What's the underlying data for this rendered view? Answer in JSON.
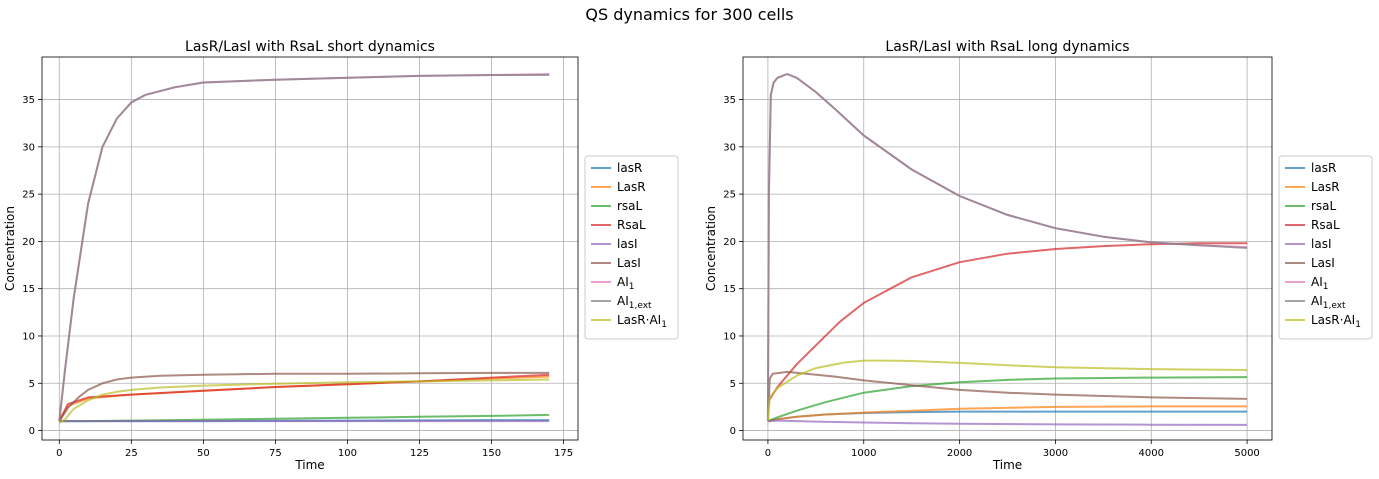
{
  "figure": {
    "suptitle": "QS dynamics for 300 cells"
  },
  "legend_labels": [
    {
      "pre": "lasR",
      "sub": "",
      "post": ""
    },
    {
      "pre": "LasR",
      "sub": "",
      "post": ""
    },
    {
      "pre": "rsaL",
      "sub": "",
      "post": ""
    },
    {
      "pre": "RsaL",
      "sub": "",
      "post": ""
    },
    {
      "pre": "lasI",
      "sub": "",
      "post": ""
    },
    {
      "pre": "LasI",
      "sub": "",
      "post": ""
    },
    {
      "pre": "AI",
      "sub": "1",
      "post": ""
    },
    {
      "pre": "AI",
      "sub": "1,ext",
      "post": ""
    },
    {
      "pre": "LasR·AI",
      "sub": "1",
      "post": ""
    }
  ],
  "colors": [
    "#1f77b4",
    "#ff7f0e",
    "#2ca02c",
    "#d62728",
    "#9467bd",
    "#8c564b",
    "#e377c2",
    "#7f7f7f",
    "#bcbd22"
  ],
  "chart_data": [
    {
      "type": "line",
      "title": "LasR/LasI with RsaL short dynamics",
      "xlabel": "Time",
      "ylabel": "Concentration",
      "xlim": [
        -6,
        180
      ],
      "ylim": [
        -1,
        39.5
      ],
      "xticks": [
        0,
        25,
        50,
        75,
        100,
        125,
        150,
        175
      ],
      "yticks": [
        0,
        5,
        10,
        15,
        20,
        25,
        30,
        35
      ],
      "grid": true,
      "legend_position": "right, outside",
      "series": [
        {
          "name": "lasR",
          "x": [
            0,
            5,
            10,
            25,
            50,
            100,
            150,
            170
          ],
          "y": [
            1.0,
            1.0,
            1.0,
            1.0,
            1.0,
            1.05,
            1.1,
            1.1
          ]
        },
        {
          "name": "LasR",
          "x": [
            0,
            3,
            10,
            25,
            50,
            75,
            100,
            125,
            150,
            170
          ],
          "y": [
            1.0,
            2.6,
            3.4,
            3.8,
            4.2,
            4.6,
            4.9,
            5.2,
            5.5,
            5.7
          ]
        },
        {
          "name": "rsaL",
          "x": [
            0,
            5,
            10,
            25,
            50,
            75,
            100,
            125,
            150,
            170
          ],
          "y": [
            1.0,
            1.0,
            1.0,
            1.05,
            1.15,
            1.25,
            1.35,
            1.45,
            1.55,
            1.65
          ]
        },
        {
          "name": "RsaL",
          "x": [
            0,
            3,
            10,
            25,
            50,
            75,
            100,
            125,
            150,
            170
          ],
          "y": [
            1.0,
            2.8,
            3.5,
            3.8,
            4.2,
            4.6,
            4.9,
            5.2,
            5.6,
            5.9
          ]
        },
        {
          "name": "lasI",
          "x": [
            0,
            5,
            10,
            25,
            50,
            100,
            150,
            170
          ],
          "y": [
            1.0,
            1.0,
            1.0,
            1.0,
            1.0,
            1.0,
            1.0,
            1.0
          ]
        },
        {
          "name": "LasI",
          "x": [
            0,
            3,
            7,
            10,
            15,
            20,
            25,
            35,
            50,
            75,
            100,
            125,
            150,
            170
          ],
          "y": [
            1.0,
            2.4,
            3.6,
            4.3,
            5.0,
            5.4,
            5.6,
            5.8,
            5.9,
            6.0,
            6.0,
            6.05,
            6.1,
            6.1
          ]
        },
        {
          "name": "AI_1",
          "x": [
            0,
            2,
            5,
            10,
            15,
            20,
            25,
            30,
            40,
            50,
            75,
            100,
            125,
            150,
            170
          ],
          "y": [
            1.0,
            6.5,
            14.0,
            24.0,
            30.0,
            33.0,
            34.7,
            35.5,
            36.3,
            36.8,
            37.1,
            37.3,
            37.5,
            37.6,
            37.7
          ]
        },
        {
          "name": "AI_1,ext",
          "x": [
            0,
            2,
            5,
            10,
            15,
            20,
            25,
            30,
            40,
            50,
            75,
            100,
            125,
            150,
            170
          ],
          "y": [
            1.0,
            6.5,
            14.0,
            24.0,
            30.0,
            33.0,
            34.7,
            35.5,
            36.3,
            36.8,
            37.1,
            37.3,
            37.5,
            37.6,
            37.6
          ]
        },
        {
          "name": "LasR·AI_1",
          "x": [
            0,
            2,
            5,
            10,
            15,
            20,
            25,
            35,
            50,
            75,
            100,
            125,
            150,
            170
          ],
          "y": [
            0.8,
            1.2,
            2.3,
            3.2,
            3.8,
            4.1,
            4.3,
            4.55,
            4.75,
            4.95,
            5.1,
            5.2,
            5.3,
            5.4
          ]
        }
      ]
    },
    {
      "type": "line",
      "title": "LasR/LasI with RsaL long dynamics",
      "xlabel": "Time",
      "ylabel": "Concentration",
      "xlim": [
        -260,
        5260
      ],
      "ylim": [
        -1,
        39.5
      ],
      "xticks": [
        0,
        1000,
        2000,
        3000,
        4000,
        5000
      ],
      "yticks": [
        0,
        5,
        10,
        15,
        20,
        25,
        30,
        35
      ],
      "grid": true,
      "legend_position": "right, outside",
      "series": [
        {
          "name": "lasR",
          "x": [
            0,
            100,
            300,
            600,
            1000,
            1500,
            2000,
            3000,
            4000,
            5000
          ],
          "y": [
            1.0,
            1.2,
            1.45,
            1.7,
            1.85,
            1.95,
            2.0,
            2.0,
            2.0,
            2.0
          ]
        },
        {
          "name": "LasR",
          "x": [
            0,
            100,
            300,
            600,
            1000,
            1500,
            2000,
            3000,
            4000,
            5000
          ],
          "y": [
            1.0,
            1.2,
            1.45,
            1.7,
            1.9,
            2.1,
            2.3,
            2.5,
            2.55,
            2.55
          ]
        },
        {
          "name": "rsaL",
          "x": [
            0,
            100,
            300,
            600,
            1000,
            1500,
            2000,
            2500,
            3000,
            4000,
            5000
          ],
          "y": [
            1.0,
            1.4,
            2.1,
            3.0,
            4.0,
            4.7,
            5.1,
            5.35,
            5.5,
            5.6,
            5.65
          ]
        },
        {
          "name": "RsaL",
          "x": [
            0,
            100,
            300,
            500,
            750,
            1000,
            1500,
            2000,
            2500,
            3000,
            3500,
            4000,
            4500,
            5000
          ],
          "y": [
            3.0,
            4.6,
            7.0,
            9.0,
            11.5,
            13.5,
            16.2,
            17.8,
            18.7,
            19.2,
            19.5,
            19.7,
            19.8,
            19.8
          ]
        },
        {
          "name": "lasI",
          "x": [
            0,
            100,
            500,
            1000,
            1500,
            2000,
            3000,
            4000,
            5000
          ],
          "y": [
            1.0,
            1.05,
            0.95,
            0.85,
            0.78,
            0.72,
            0.65,
            0.62,
            0.6
          ]
        },
        {
          "name": "LasI",
          "x": [
            0,
            20,
            50,
            200,
            400,
            700,
            1000,
            1500,
            2000,
            2500,
            3000,
            4000,
            5000
          ],
          "y": [
            1.0,
            5.5,
            6.0,
            6.2,
            6.0,
            5.7,
            5.3,
            4.8,
            4.3,
            4.0,
            3.8,
            3.5,
            3.35
          ]
        },
        {
          "name": "AI_1",
          "x": [
            0,
            10,
            30,
            60,
            100,
            200,
            300,
            500,
            700,
            1000,
            1500,
            2000,
            2500,
            3000,
            3500,
            4000,
            4500,
            5000
          ],
          "y": [
            1.0,
            25.0,
            35.5,
            36.8,
            37.3,
            37.7,
            37.3,
            35.8,
            34.0,
            31.2,
            27.6,
            24.8,
            22.8,
            21.4,
            20.5,
            19.9,
            19.6,
            19.4
          ]
        },
        {
          "name": "AI_1,ext",
          "x": [
            0,
            10,
            30,
            60,
            100,
            200,
            300,
            500,
            700,
            1000,
            1500,
            2000,
            2500,
            3000,
            3500,
            4000,
            4500,
            5000
          ],
          "y": [
            1.0,
            25.0,
            35.5,
            36.8,
            37.3,
            37.7,
            37.3,
            35.8,
            34.0,
            31.2,
            27.6,
            24.8,
            22.8,
            21.4,
            20.5,
            19.9,
            19.6,
            19.3
          ]
        },
        {
          "name": "LasR·AI_1",
          "x": [
            0,
            20,
            100,
            300,
            500,
            800,
            1000,
            1200,
            1500,
            2000,
            2500,
            3000,
            4000,
            5000
          ],
          "y": [
            1.0,
            3.5,
            4.5,
            5.8,
            6.6,
            7.2,
            7.4,
            7.4,
            7.35,
            7.15,
            6.9,
            6.7,
            6.5,
            6.4
          ]
        }
      ]
    }
  ]
}
